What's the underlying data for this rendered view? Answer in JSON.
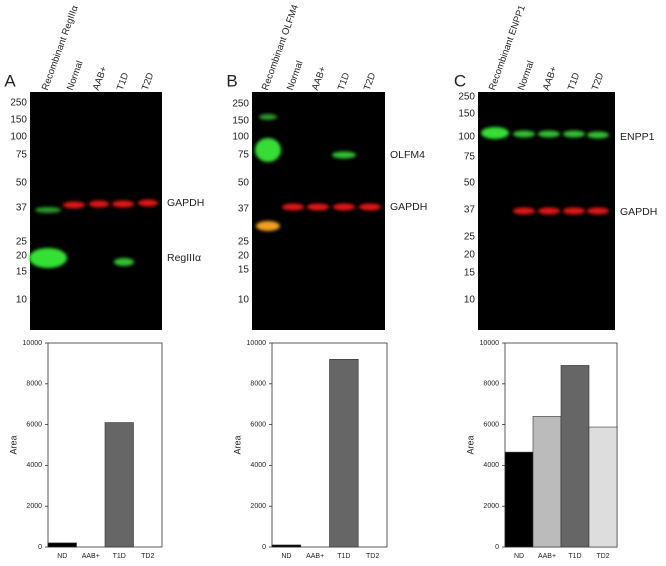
{
  "panels": [
    {
      "letter": "A",
      "lanes": [
        "Recombinant RegIIIα",
        "Normal",
        "AAB+",
        "T1D",
        "T2D"
      ],
      "markers": [
        250,
        150,
        100,
        75,
        50,
        37,
        25,
        20,
        15,
        10
      ],
      "bands": [
        "GAPDH",
        "RegIIIα"
      ]
    },
    {
      "letter": "B",
      "lanes": [
        "Recombinant OLFM4",
        "Normal",
        "AAB+",
        "T1D",
        "T2D"
      ],
      "markers": [
        250,
        150,
        100,
        75,
        50,
        37,
        25,
        20,
        15,
        10
      ],
      "bands": [
        "OLFM4",
        "GAPDH"
      ]
    },
    {
      "letter": "C",
      "lanes": [
        "Recombinant ENPP1",
        "Normal",
        "AAB+",
        "T1D",
        "T2D"
      ],
      "markers": [
        250,
        150,
        100,
        75,
        50,
        37,
        25,
        20,
        15,
        10
      ],
      "bands": [
        "ENPP1",
        "GAPDH"
      ]
    }
  ],
  "chart_data": [
    {
      "type": "bar",
      "y_label": "Area",
      "categories": [
        "ND",
        "AAB+",
        "T1D",
        "TD2"
      ],
      "values": [
        200,
        0,
        6100,
        0
      ],
      "colors": [
        "#000000",
        "#bbbbbb",
        "#666666",
        "#dddddd"
      ],
      "ylim": [
        0,
        10000
      ],
      "yticks": [
        0,
        2000,
        4000,
        6000,
        8000,
        10000
      ]
    },
    {
      "type": "bar",
      "y_label": "Area",
      "categories": [
        "ND",
        "AAB+",
        "T1D",
        "TD2"
      ],
      "values": [
        100,
        0,
        9200,
        0
      ],
      "colors": [
        "#000000",
        "#bbbbbb",
        "#666666",
        "#dddddd"
      ],
      "ylim": [
        0,
        10000
      ],
      "yticks": [
        0,
        2000,
        4000,
        6000,
        8000,
        10000
      ]
    },
    {
      "type": "bar",
      "y_label": "Area",
      "categories": [
        "ND",
        "AAB+",
        "T1D",
        "TD2"
      ],
      "values": [
        4650,
        6400,
        8900,
        5880
      ],
      "colors": [
        "#000000",
        "#bbbbbb",
        "#666666",
        "#dddddd"
      ],
      "ylim": [
        0,
        10000
      ],
      "yticks": [
        0,
        2000,
        4000,
        6000,
        8000,
        10000
      ]
    }
  ]
}
